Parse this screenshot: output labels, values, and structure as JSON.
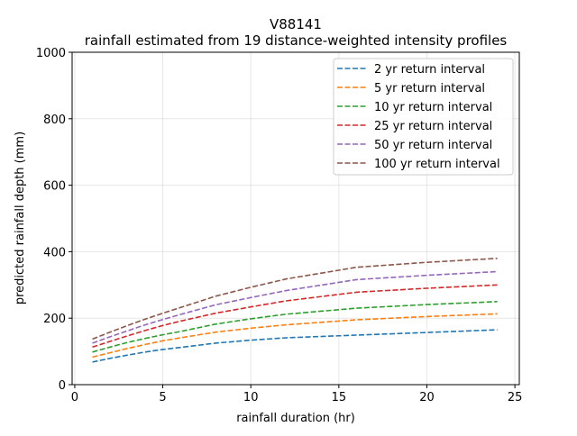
{
  "chart_data": {
    "type": "line",
    "title": "V88141",
    "subtitle": "rainfall estimated from 19 distance-weighted intensity profiles",
    "xlabel": "rainfall duration (hr)",
    "ylabel": "predicted rainfall depth (mm)",
    "xlim": [
      -0.15,
      25.25
    ],
    "ylim": [
      0,
      1000
    ],
    "xticks": [
      0,
      5,
      10,
      15,
      20,
      25
    ],
    "yticks": [
      0,
      200,
      400,
      600,
      800,
      1000
    ],
    "grid": true,
    "legend_position": "top-right",
    "line_style": "dashed",
    "x": [
      1,
      2,
      3,
      4,
      5,
      6,
      8,
      10,
      12,
      16,
      20,
      24
    ],
    "series": [
      {
        "name": "2 yr return interval",
        "color": "#1f77b4",
        "values": [
          68,
          79,
          89,
          98,
          106,
          112,
          125,
          134,
          141,
          149,
          157,
          165
        ]
      },
      {
        "name": "5 yr return interval",
        "color": "#ff7f0e",
        "values": [
          83,
          96,
          109,
          121,
          132,
          141,
          158,
          170,
          180,
          195,
          205,
          213
        ]
      },
      {
        "name": "10 yr return interval",
        "color": "#2ca02c",
        "values": [
          98,
          113,
          127,
          139,
          150,
          160,
          182,
          198,
          212,
          230,
          241,
          250
        ]
      },
      {
        "name": "25 yr return interval",
        "color": "#d62728",
        "values": [
          113,
          130,
          147,
          163,
          178,
          191,
          215,
          234,
          252,
          278,
          290,
          300
        ]
      },
      {
        "name": "50 yr return interval",
        "color": "#9467bd",
        "values": [
          125,
          144,
          162,
          180,
          196,
          211,
          240,
          262,
          283,
          316,
          329,
          340
        ]
      },
      {
        "name": "100 yr return interval",
        "color": "#8c564b",
        "values": [
          137,
          158,
          178,
          197,
          215,
          232,
          266,
          293,
          318,
          353,
          368,
          380
        ]
      }
    ]
  }
}
